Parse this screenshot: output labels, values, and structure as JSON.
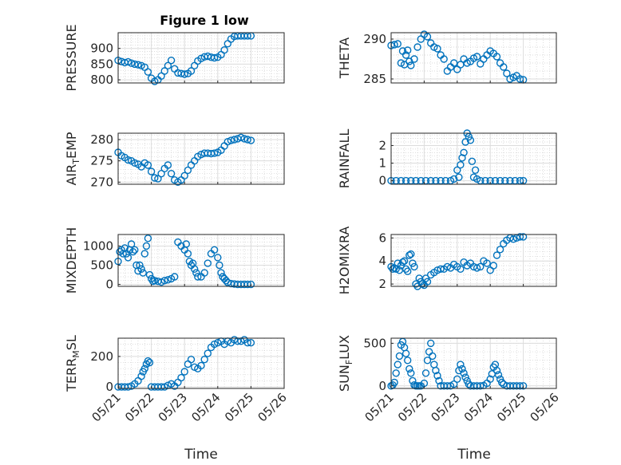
{
  "figure": {
    "title": "Figure 1 low",
    "xlabel": "Time",
    "x_ticks": [
      "05/21",
      "05/22",
      "05/23",
      "05/24",
      "05/25",
      "05/26"
    ],
    "marker_color": "#0072BD"
  },
  "chart_data": [
    {
      "type": "scatter",
      "panel": "PRESSURE",
      "title": "Figure 1 low",
      "ylabel": "PRESSURE",
      "ylim": [
        790,
        950
      ],
      "y_ticks": [
        800,
        850,
        900
      ],
      "x_ticks": [
        "05/21",
        "05/22",
        "05/23",
        "05/24",
        "05/25",
        "05/26"
      ],
      "grid": true,
      "x": [
        0,
        0.1,
        0.2,
        0.3,
        0.4,
        0.5,
        0.6,
        0.7,
        0.8,
        0.9,
        1.0,
        1.1,
        1.2,
        1.3,
        1.4,
        1.5,
        1.6,
        1.7,
        1.8,
        1.9,
        2.0,
        2.1,
        2.2,
        2.3,
        2.4,
        2.5,
        2.6,
        2.7,
        2.8,
        2.9,
        3.0,
        3.1,
        3.2,
        3.3,
        3.4,
        3.5,
        3.6,
        3.7,
        3.8,
        3.9,
        4.0
      ],
      "y": [
        862,
        858,
        855,
        857,
        853,
        850,
        848,
        845,
        840,
        825,
        805,
        795,
        800,
        812,
        828,
        845,
        862,
        835,
        822,
        820,
        818,
        820,
        828,
        845,
        860,
        868,
        873,
        875,
        872,
        870,
        872,
        880,
        895,
        915,
        930,
        938,
        940,
        940,
        940,
        940,
        940
      ]
    },
    {
      "type": "scatter",
      "panel": "THETA",
      "ylabel": "THETA",
      "ylim": [
        284.5,
        290.8
      ],
      "y_ticks": [
        285,
        290
      ],
      "x_ticks": [
        "05/21",
        "05/22",
        "05/23",
        "05/24",
        "05/25",
        "05/26"
      ],
      "grid": true,
      "x": [
        0,
        0.1,
        0.2,
        0.3,
        0.35,
        0.4,
        0.45,
        0.5,
        0.55,
        0.6,
        0.7,
        0.8,
        0.9,
        1.0,
        1.1,
        1.2,
        1.3,
        1.4,
        1.5,
        1.6,
        1.7,
        1.8,
        1.9,
        2.0,
        2.1,
        2.2,
        2.3,
        2.4,
        2.5,
        2.6,
        2.7,
        2.8,
        2.9,
        3.0,
        3.1,
        3.2,
        3.3,
        3.4,
        3.5,
        3.6,
        3.7,
        3.8,
        3.9,
        4.0
      ],
      "y": [
        289.2,
        289.3,
        289.4,
        287.0,
        288.5,
        286.8,
        288.0,
        288.6,
        287.2,
        286.7,
        287.5,
        289.0,
        290.0,
        290.6,
        290.3,
        289.5,
        289.0,
        288.8,
        288.0,
        287.5,
        286.0,
        286.5,
        287.0,
        286.2,
        286.8,
        287.5,
        287.0,
        287.2,
        287.6,
        287.8,
        286.9,
        287.5,
        288.0,
        288.5,
        288.2,
        287.8,
        287.0,
        286.5,
        285.7,
        285.0,
        285.2,
        285.4,
        285.0,
        284.9
      ]
    },
    {
      "type": "scatter",
      "panel": "AIR_TEMP",
      "ylabel": "AIR_TEMP",
      "ylim": [
        269.5,
        281.5
      ],
      "y_ticks": [
        270,
        275,
        280
      ],
      "x_ticks": [
        "05/21",
        "05/22",
        "05/23",
        "05/24",
        "05/25",
        "05/26"
      ],
      "grid": true,
      "x": [
        0,
        0.1,
        0.2,
        0.3,
        0.4,
        0.5,
        0.6,
        0.7,
        0.8,
        0.9,
        1.0,
        1.1,
        1.2,
        1.3,
        1.4,
        1.5,
        1.6,
        1.7,
        1.8,
        1.9,
        2.0,
        2.1,
        2.2,
        2.3,
        2.4,
        2.5,
        2.6,
        2.7,
        2.8,
        2.9,
        3.0,
        3.1,
        3.2,
        3.3,
        3.4,
        3.5,
        3.6,
        3.7,
        3.8,
        3.9,
        4.0
      ],
      "y": [
        277,
        276.2,
        275.8,
        275.2,
        275,
        274.5,
        274.2,
        273.6,
        274.5,
        274,
        272.5,
        271,
        270.8,
        272,
        273.2,
        274,
        272,
        270.5,
        270,
        270.5,
        271.5,
        272.8,
        274,
        275,
        276,
        276.5,
        276.8,
        276.8,
        276.7,
        276.8,
        277,
        277.5,
        278.5,
        279.5,
        279.8,
        280,
        280.2,
        280.5,
        280.2,
        280,
        279.8
      ]
    },
    {
      "type": "scatter",
      "panel": "RAINFALL",
      "ylabel": "RAINFALL",
      "ylim": [
        -0.2,
        2.7
      ],
      "y_ticks": [
        0,
        1,
        2
      ],
      "x_ticks": [
        "05/21",
        "05/22",
        "05/23",
        "05/24",
        "05/25",
        "05/26"
      ],
      "grid": true,
      "x": [
        0,
        0.15,
        0.3,
        0.45,
        0.6,
        0.75,
        0.9,
        1.05,
        1.2,
        1.35,
        1.5,
        1.65,
        1.8,
        1.9,
        2.0,
        2.05,
        2.1,
        2.15,
        2.2,
        2.25,
        2.3,
        2.35,
        2.4,
        2.45,
        2.5,
        2.55,
        2.6,
        2.7,
        2.85,
        3.0,
        3.15,
        3.3,
        3.45,
        3.6,
        3.75,
        3.9,
        4.0
      ],
      "y": [
        0,
        0,
        0,
        0,
        0,
        0,
        0,
        0,
        0,
        0,
        0,
        0,
        0,
        0.1,
        0.6,
        0.2,
        0.9,
        1.3,
        1.6,
        2.2,
        2.7,
        2.5,
        2.3,
        1.1,
        0.2,
        0.6,
        0.1,
        0,
        0,
        0,
        0,
        0,
        0,
        0,
        0,
        0,
        0
      ]
    },
    {
      "type": "scatter",
      "panel": "MIXDEPTH",
      "ylabel": "MIXDEPTH",
      "ylim": [
        -50,
        1300
      ],
      "y_ticks": [
        0,
        500,
        1000
      ],
      "x_ticks": [
        "05/21",
        "05/22",
        "05/23",
        "05/24",
        "05/25",
        "05/26"
      ],
      "grid": true,
      "x": [
        0,
        0.05,
        0.1,
        0.15,
        0.2,
        0.25,
        0.3,
        0.35,
        0.4,
        0.45,
        0.5,
        0.55,
        0.6,
        0.65,
        0.7,
        0.75,
        0.8,
        0.85,
        0.9,
        0.95,
        1.0,
        1.05,
        1.1,
        1.2,
        1.3,
        1.4,
        1.5,
        1.6,
        1.7,
        1.8,
        1.9,
        2.0,
        2.05,
        2.1,
        2.15,
        2.2,
        2.25,
        2.3,
        2.35,
        2.4,
        2.5,
        2.6,
        2.7,
        2.8,
        2.9,
        3.0,
        3.05,
        3.1,
        3.15,
        3.2,
        3.25,
        3.3,
        3.4,
        3.5,
        3.6,
        3.7,
        3.8,
        3.9,
        4.0
      ],
      "y": [
        600,
        850,
        900,
        800,
        950,
        800,
        700,
        900,
        1050,
        850,
        900,
        500,
        350,
        500,
        400,
        300,
        800,
        1000,
        1200,
        250,
        150,
        80,
        100,
        80,
        60,
        100,
        120,
        150,
        200,
        1100,
        1000,
        900,
        1050,
        800,
        600,
        500,
        550,
        400,
        300,
        200,
        200,
        300,
        550,
        800,
        900,
        700,
        500,
        300,
        200,
        150,
        100,
        50,
        20,
        10,
        0,
        0,
        0,
        0,
        0
      ]
    },
    {
      "type": "scatter",
      "panel": "H2OMIXRA",
      "ylabel": "H2OMIXRA",
      "ylim": [
        1.8,
        6.3
      ],
      "y_ticks": [
        2,
        4,
        6
      ],
      "x_ticks": [
        "05/21",
        "05/22",
        "05/23",
        "05/24",
        "05/25",
        "05/26"
      ],
      "grid": true,
      "x": [
        0,
        0.05,
        0.1,
        0.15,
        0.2,
        0.25,
        0.3,
        0.35,
        0.4,
        0.45,
        0.5,
        0.55,
        0.6,
        0.65,
        0.7,
        0.75,
        0.8,
        0.85,
        0.9,
        0.95,
        1.0,
        1.05,
        1.1,
        1.2,
        1.3,
        1.4,
        1.5,
        1.6,
        1.7,
        1.8,
        1.9,
        2.0,
        2.1,
        2.2,
        2.3,
        2.4,
        2.5,
        2.6,
        2.7,
        2.8,
        2.9,
        3.0,
        3.1,
        3.2,
        3.3,
        3.4,
        3.5,
        3.6,
        3.7,
        3.8,
        3.9,
        4.0
      ],
      "y": [
        3.5,
        3.3,
        3.4,
        3.3,
        3.8,
        3.2,
        3.6,
        3.9,
        4.0,
        3.3,
        3.1,
        4.5,
        4.6,
        3.8,
        3.5,
        2.0,
        1.8,
        2.5,
        2.2,
        2.0,
        1.9,
        2.5,
        2.2,
        2.8,
        3.0,
        3.2,
        3.3,
        3.3,
        3.5,
        3.4,
        3.7,
        3.5,
        3.3,
        3.9,
        3.6,
        3.8,
        3.5,
        3.4,
        3.5,
        4.0,
        3.8,
        3.2,
        3.6,
        4.5,
        5.0,
        5.5,
        5.8,
        6.0,
        5.9,
        6.0,
        6.1,
        6.1
      ]
    },
    {
      "type": "scatter",
      "panel": "TERR_MSL",
      "ylabel": "TERR_MSL",
      "ylim": [
        -10,
        320
      ],
      "y_ticks": [
        0,
        200
      ],
      "x_ticks": [
        "05/21",
        "05/22",
        "05/23",
        "05/24",
        "05/25",
        "05/26"
      ],
      "grid": true,
      "x": [
        0,
        0.1,
        0.2,
        0.3,
        0.4,
        0.5,
        0.6,
        0.7,
        0.75,
        0.8,
        0.85,
        0.9,
        0.95,
        1.0,
        1.1,
        1.2,
        1.3,
        1.4,
        1.5,
        1.6,
        1.7,
        1.8,
        1.9,
        2.0,
        2.1,
        2.2,
        2.3,
        2.4,
        2.5,
        2.6,
        2.7,
        2.8,
        2.9,
        3.0,
        3.1,
        3.2,
        3.3,
        3.4,
        3.5,
        3.6,
        3.7,
        3.8,
        3.9,
        4.0
      ],
      "y": [
        0,
        0,
        0,
        0,
        5,
        20,
        40,
        70,
        100,
        120,
        150,
        170,
        160,
        0,
        0,
        0,
        0,
        0,
        10,
        20,
        5,
        30,
        60,
        100,
        150,
        180,
        130,
        120,
        140,
        180,
        220,
        260,
        280,
        290,
        300,
        280,
        300,
        290,
        310,
        300,
        300,
        310,
        290,
        290
      ]
    },
    {
      "type": "scatter",
      "panel": "SUN_FLUX",
      "ylabel": "SUN_FLUX",
      "ylim": [
        -30,
        560
      ],
      "y_ticks": [
        0,
        500
      ],
      "x_ticks": [
        "05/21",
        "05/22",
        "05/23",
        "05/24",
        "05/25",
        "05/26"
      ],
      "grid": true,
      "x": [
        0,
        0.05,
        0.1,
        0.15,
        0.2,
        0.25,
        0.3,
        0.35,
        0.4,
        0.45,
        0.5,
        0.55,
        0.6,
        0.65,
        0.7,
        0.75,
        0.8,
        0.85,
        0.9,
        1.0,
        1.05,
        1.1,
        1.15,
        1.2,
        1.25,
        1.3,
        1.35,
        1.4,
        1.45,
        1.5,
        1.6,
        1.7,
        1.8,
        1.9,
        2.0,
        2.05,
        2.1,
        2.15,
        2.2,
        2.25,
        2.3,
        2.35,
        2.4,
        2.5,
        2.6,
        2.7,
        2.8,
        2.9,
        3.0,
        3.05,
        3.1,
        3.15,
        3.2,
        3.25,
        3.3,
        3.35,
        3.4,
        3.5,
        3.6,
        3.7,
        3.8,
        3.9,
        4.0
      ],
      "y": [
        0,
        10,
        40,
        150,
        250,
        350,
        480,
        520,
        450,
        380,
        300,
        200,
        150,
        60,
        10,
        0,
        0,
        0,
        0,
        30,
        150,
        300,
        400,
        500,
        350,
        250,
        180,
        120,
        60,
        0,
        0,
        0,
        0,
        20,
        80,
        180,
        250,
        200,
        150,
        100,
        60,
        20,
        0,
        0,
        0,
        0,
        5,
        30,
        80,
        140,
        220,
        250,
        180,
        130,
        80,
        40,
        20,
        0,
        0,
        0,
        0,
        0,
        0
      ]
    }
  ]
}
